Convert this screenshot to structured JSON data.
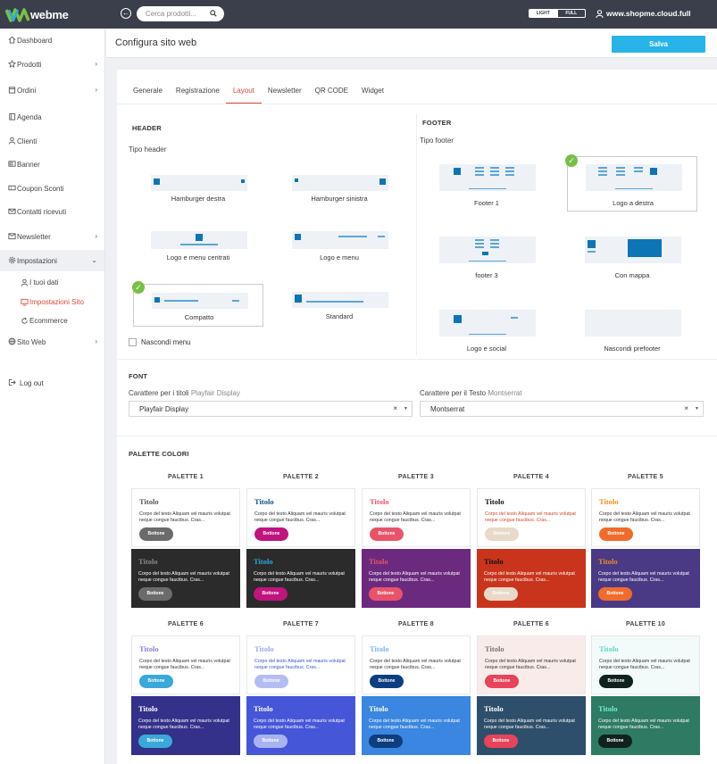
{
  "brand": {
    "name": "webme"
  },
  "topbar": {
    "search_placeholder": "Cerca prodotti...",
    "mode_light": "LIGHT",
    "mode_full": "FULL",
    "store": "www.shopme.cloud.full"
  },
  "sidebar": {
    "items": [
      {
        "label": "Dashboard",
        "icon": "home-icon"
      },
      {
        "label": "Prodotti",
        "icon": "star-icon"
      },
      {
        "label": "Ordini",
        "icon": "box-icon"
      },
      {
        "label": "Agenda",
        "icon": "book-icon"
      },
      {
        "label": "Clienti",
        "icon": "user-icon"
      },
      {
        "label": "Banner",
        "icon": "banner-icon"
      },
      {
        "label": "Coupon Sconti",
        "icon": "coupon-icon"
      },
      {
        "label": "Contatti ricevuti",
        "icon": "mail-icon"
      },
      {
        "label": "Newsletter",
        "icon": "newsletter-icon"
      },
      {
        "label": "Impostazioni",
        "icon": "gear-icon"
      },
      {
        "label": "Sito Web",
        "icon": "globe-icon"
      },
      {
        "label": "Log out",
        "icon": "logout-icon"
      }
    ],
    "sub_items": [
      {
        "label": "I tuoi dati"
      },
      {
        "label": "Impostazioni Sito"
      },
      {
        "label": "Ecommerce"
      }
    ]
  },
  "page": {
    "title": "Configura sito web",
    "save_label": "Salva"
  },
  "tabs": [
    "Generale",
    "Registrazione",
    "Layout",
    "Newsletter",
    "QR CODE",
    "Widget"
  ],
  "header_section": {
    "title": "HEADER",
    "subtitle": "Tipo header",
    "options": [
      "Hamburger destra",
      "Hamburger sinistra",
      "Logo e menu centrati",
      "Logo e menu",
      "Compatto",
      "Standard"
    ],
    "selected": "Compatto",
    "hide_menu_label": "Nascondi menu"
  },
  "footer_section": {
    "title": "FOOTER",
    "subtitle": "Tipo footer",
    "options": [
      "Footer 1",
      "Logo a destra",
      "footer 3",
      "Con mappa",
      "Logo e social",
      "Nascondi prefooter"
    ],
    "selected": "Logo a destra"
  },
  "font_section": {
    "title": "FONT",
    "titles_label": "Carattere per i titoli",
    "titles_font": "Playfair Display",
    "text_label": "Carattere per il Testo",
    "text_font": "Montserrat",
    "clear_glyph": "×",
    "caret_glyph": "▼"
  },
  "palette_section": {
    "title": "PALETTE COLORI",
    "sample_title": "Titolo",
    "sample_body": "Corpo del testo Aliquam vel mauris volutpat neque congue faucibus. Cras...",
    "sample_button": "Bottone",
    "palettes": [
      {
        "name": "PALETTE 1",
        "light": {
          "title": "#555555",
          "text": "#333333",
          "btn": "#6b6b6b"
        },
        "dark": {
          "bg": "#2b2b2b",
          "title": "#8a8a8a",
          "text": "#ffffff",
          "btn": "#6b6b6b"
        }
      },
      {
        "name": "PALETTE 2",
        "light": {
          "title": "#0d4d8c",
          "text": "#333333",
          "btn": "#c0147f"
        },
        "dark": {
          "bg": "#2b2b2b",
          "title": "#29a9e6",
          "text": "#ffffff",
          "btn": "#c0147f"
        }
      },
      {
        "name": "PALETTE 3",
        "light": {
          "title": "#e8536a",
          "text": "#333333",
          "btn": "#e8536a"
        },
        "dark": {
          "bg": "#6b2a7e",
          "title": "#e8536a",
          "text": "#ffffff",
          "btn": "#e8536a"
        }
      },
      {
        "name": "PALETTE 4",
        "light": {
          "title": "#111111",
          "text": "#d9442b",
          "btn": "#e8d9c8"
        },
        "dark": {
          "bg": "#c8351c",
          "title": "#111111",
          "text": "#ffffff",
          "btn": "#e8d9c8"
        }
      },
      {
        "name": "PALETTE 5",
        "light": {
          "title": "#f18a24",
          "text": "#333333",
          "btn": "#f06b2c"
        },
        "dark": {
          "bg": "#4a3a85",
          "title": "#f18a24",
          "text": "#ffffff",
          "btn": "#f06b2c"
        }
      },
      {
        "name": "PALETTE 6",
        "light": {
          "title": "#8a7dd6",
          "text": "#333333",
          "btn": "#3aa8d8"
        },
        "dark": {
          "bg": "#33318a",
          "title": "#ffffff",
          "text": "#ffffff",
          "btn": "#3aa8d8"
        }
      },
      {
        "name": "PALETTE 7",
        "light": {
          "title": "#9aa8f0",
          "text": "#3a52d8",
          "btn": "#b4bdf2"
        },
        "dark": {
          "bg": "#4656d8",
          "title": "#ffffff",
          "text": "#ffffff",
          "btn": "#a9b3f2"
        }
      },
      {
        "name": "PALETTE 8",
        "light": {
          "title": "#7ab5ec",
          "text": "#333333",
          "btn": "#0d3e80"
        },
        "dark": {
          "bg": "#3a86e0",
          "title": "#ffffff",
          "text": "#ffffff",
          "btn": "#0d3e80"
        }
      },
      {
        "name": "PALETTE 6",
        "light": {
          "bg": "#f8ebe9",
          "title": "#777777",
          "text": "#333333",
          "btn": "#e8435a"
        },
        "dark": {
          "bg": "#2e4f6b",
          "title": "#ffffff",
          "text": "#ffffff",
          "btn": "#e8435a"
        }
      },
      {
        "name": "PALETTE 10",
        "light": {
          "bg": "#f3fbfa",
          "title": "#5ad6c2",
          "text": "#333333",
          "btn": "#10221e"
        },
        "dark": {
          "bg": "#2f7a63",
          "title": "#6ff2d6",
          "text": "#ffffff",
          "btn": "#10221e"
        }
      }
    ]
  },
  "colors": {
    "accent": "#e0473a",
    "primary": "#28b4e8",
    "topbar": "#3a3f4b",
    "selected_check": "#76c043"
  }
}
